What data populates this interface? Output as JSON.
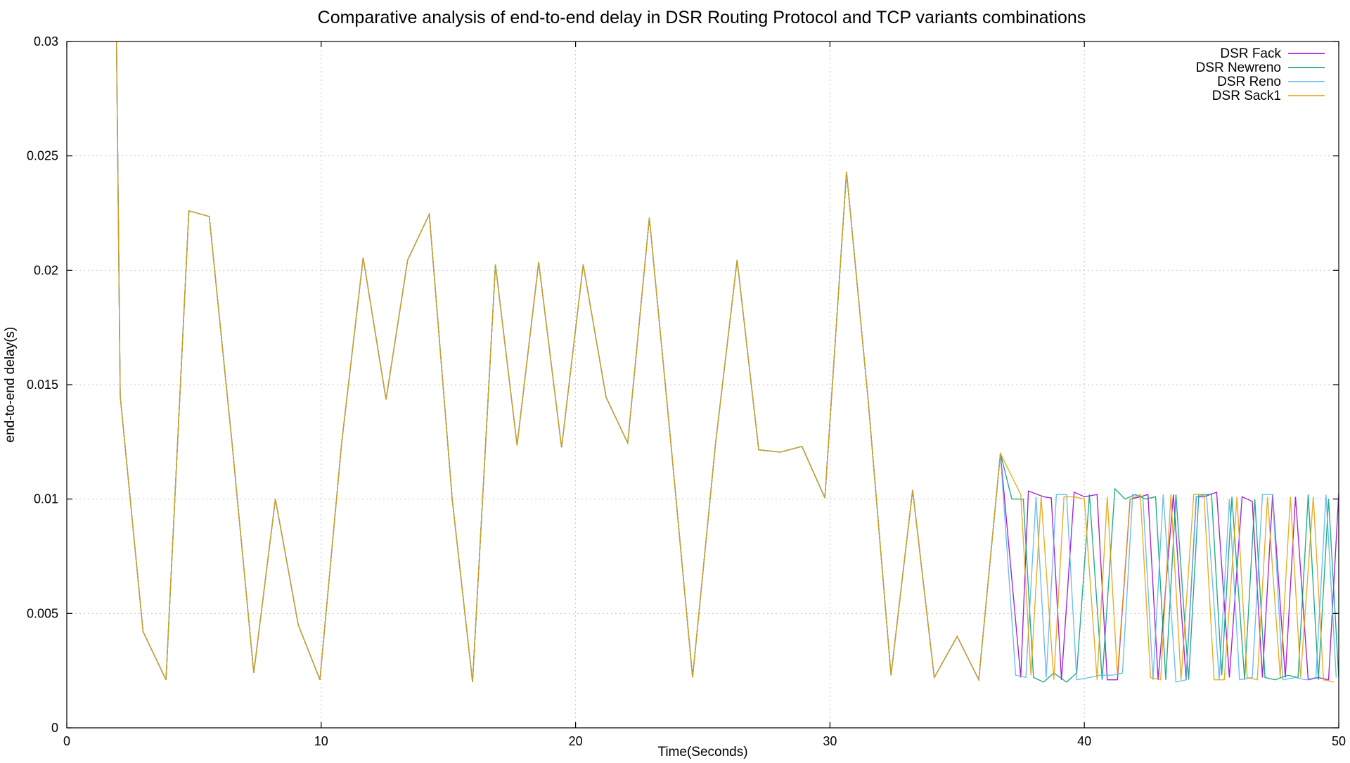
{
  "chart_data": {
    "type": "line",
    "title": "Comparative analysis of end-to-end delay in DSR Routing Protocol and TCP variants combinations",
    "xlabel": "Time(Seconds)",
    "ylabel": "end-to-end delay(s)",
    "xlim": [
      0,
      50
    ],
    "ylim": [
      0,
      0.03
    ],
    "xticks": [
      0,
      10,
      20,
      30,
      40,
      50
    ],
    "xtick_labels": [
      "0",
      "10",
      "20",
      "30",
      "40",
      "50"
    ],
    "yticks": [
      0,
      0.005,
      0.01,
      0.015,
      0.02,
      0.025,
      0.03
    ],
    "ytick_labels": [
      "0",
      "0.005",
      "0.01",
      "0.015",
      "0.02",
      "0.025",
      "0.03"
    ],
    "grid": true,
    "legend_position": "top-right",
    "common_prefix": [
      [
        1.95,
        0.0305
      ],
      [
        2.1,
        0.0145
      ],
      [
        3.0,
        0.0042
      ],
      [
        3.9,
        0.0021
      ],
      [
        4.8,
        0.0226
      ],
      [
        5.6,
        0.02235
      ],
      [
        6.5,
        0.0124
      ],
      [
        7.35,
        0.0024
      ],
      [
        8.2,
        0.01
      ],
      [
        9.1,
        0.0045
      ],
      [
        9.95,
        0.0021
      ],
      [
        10.8,
        0.0124
      ],
      [
        11.65,
        0.02055
      ],
      [
        12.55,
        0.01435
      ],
      [
        13.4,
        0.02045
      ],
      [
        14.25,
        0.02245
      ],
      [
        15.15,
        0.01
      ],
      [
        15.95,
        0.002
      ],
      [
        16.85,
        0.02025
      ],
      [
        17.7,
        0.01235
      ],
      [
        18.55,
        0.02035
      ],
      [
        19.45,
        0.01225
      ],
      [
        20.3,
        0.02025
      ],
      [
        21.2,
        0.01445
      ],
      [
        22.05,
        0.01245
      ],
      [
        22.9,
        0.0223
      ],
      [
        23.75,
        0.0124
      ],
      [
        24.6,
        0.0022
      ],
      [
        25.5,
        0.0124
      ],
      [
        26.35,
        0.02045
      ],
      [
        27.2,
        0.01215
      ],
      [
        28.05,
        0.01205
      ],
      [
        28.9,
        0.0123
      ],
      [
        29.8,
        0.01005
      ],
      [
        30.65,
        0.0243
      ],
      [
        31.5,
        0.01435
      ],
      [
        32.4,
        0.0023
      ],
      [
        33.25,
        0.0104
      ],
      [
        34.1,
        0.0022
      ],
      [
        35.0,
        0.004
      ],
      [
        35.85,
        0.0021
      ],
      [
        36.7,
        0.012
      ]
    ],
    "series": [
      {
        "name": "DSR Fack",
        "color": "#9400d3",
        "values_tail": [
          [
            37.5,
            0.0022
          ],
          [
            37.8,
            0.01035
          ],
          [
            38.4,
            0.0101
          ],
          [
            38.7,
            0.01005
          ],
          [
            39.1,
            0.0021
          ],
          [
            39.6,
            0.0103
          ],
          [
            40.0,
            0.0101
          ],
          [
            40.5,
            0.0102
          ],
          [
            40.9,
            0.0021
          ],
          [
            41.3,
            0.0021
          ],
          [
            41.8,
            0.01
          ],
          [
            42.2,
            0.0101
          ],
          [
            42.5,
            0.0102
          ],
          [
            42.9,
            0.0021
          ],
          [
            43.5,
            0.0102
          ],
          [
            44.0,
            0.0021
          ],
          [
            44.4,
            0.0101
          ],
          [
            44.7,
            0.0101
          ],
          [
            45.2,
            0.0103
          ],
          [
            45.7,
            0.0022
          ],
          [
            46.2,
            0.0101
          ],
          [
            46.6,
            0.0099
          ],
          [
            47.0,
            0.0022
          ],
          [
            47.4,
            0.0102
          ],
          [
            47.9,
            0.0022
          ],
          [
            48.3,
            0.0101
          ],
          [
            48.8,
            0.0021
          ],
          [
            49.2,
            0.0022
          ],
          [
            49.6,
            0.0021
          ],
          [
            50.0,
            0.01025
          ]
        ]
      },
      {
        "name": "DSR Newreno",
        "color": "#009e73",
        "values_tail": [
          [
            37.15,
            0.01
          ],
          [
            37.6,
            0.01
          ],
          [
            38.0,
            0.0022
          ],
          [
            38.4,
            0.002
          ],
          [
            38.8,
            0.0024
          ],
          [
            39.3,
            0.002
          ],
          [
            39.7,
            0.0024
          ],
          [
            40.2,
            0.0102
          ],
          [
            40.7,
            0.0021
          ],
          [
            41.2,
            0.01045
          ],
          [
            41.6,
            0.01
          ],
          [
            42.0,
            0.0102
          ],
          [
            42.4,
            0.01
          ],
          [
            42.8,
            0.0101
          ],
          [
            43.2,
            0.0021
          ],
          [
            43.6,
            0.0102
          ],
          [
            44.1,
            0.0021
          ],
          [
            44.5,
            0.0102
          ],
          [
            45.0,
            0.0102
          ],
          [
            45.4,
            0.0023
          ],
          [
            45.8,
            0.0101
          ],
          [
            46.3,
            0.0021
          ],
          [
            46.7,
            0.01
          ],
          [
            47.1,
            0.0022
          ],
          [
            47.5,
            0.0021
          ],
          [
            48.0,
            0.0023
          ],
          [
            48.4,
            0.0022
          ],
          [
            48.8,
            0.0102
          ],
          [
            49.2,
            0.0021
          ],
          [
            49.6,
            0.01
          ],
          [
            50.0,
            0.0022
          ]
        ]
      },
      {
        "name": "DSR Reno",
        "color": "#56b4e9",
        "values_tail": [
          [
            37.3,
            0.0023
          ],
          [
            37.7,
            0.0022
          ],
          [
            38.1,
            0.0101
          ],
          [
            38.5,
            0.0022
          ],
          [
            38.9,
            0.0102
          ],
          [
            39.3,
            0.0102
          ],
          [
            39.7,
            0.0021
          ],
          [
            40.2,
            0.0022
          ],
          [
            40.6,
            0.0023
          ],
          [
            41.1,
            0.0023
          ],
          [
            41.5,
            0.0024
          ],
          [
            41.9,
            0.0102
          ],
          [
            42.3,
            0.0101
          ],
          [
            42.7,
            0.0021
          ],
          [
            43.1,
            0.0102
          ],
          [
            43.6,
            0.002
          ],
          [
            44.0,
            0.0021
          ],
          [
            44.4,
            0.0101
          ],
          [
            44.8,
            0.0102
          ],
          [
            45.3,
            0.0021
          ],
          [
            45.7,
            0.01
          ],
          [
            46.1,
            0.0021
          ],
          [
            46.6,
            0.0022
          ],
          [
            47.0,
            0.0102
          ],
          [
            47.4,
            0.0102
          ],
          [
            47.8,
            0.0021
          ],
          [
            48.3,
            0.0022
          ],
          [
            48.7,
            0.0021
          ],
          [
            49.1,
            0.0022
          ],
          [
            49.5,
            0.0102
          ],
          [
            49.9,
            0.0022
          ]
        ]
      },
      {
        "name": "DSR Sack1",
        "color": "#e69f00",
        "values_tail": [
          [
            37.5,
            0.0102
          ],
          [
            37.9,
            0.0023
          ],
          [
            38.3,
            0.0101
          ],
          [
            38.8,
            0.0021
          ],
          [
            39.2,
            0.0101
          ],
          [
            39.6,
            0.0101
          ],
          [
            40.0,
            0.01
          ],
          [
            40.5,
            0.0021
          ],
          [
            40.9,
            0.0101
          ],
          [
            41.3,
            0.0023
          ],
          [
            41.8,
            0.01
          ],
          [
            42.2,
            0.0102
          ],
          [
            42.6,
            0.0022
          ],
          [
            43.0,
            0.0021
          ],
          [
            43.4,
            0.0102
          ],
          [
            43.8,
            0.0021
          ],
          [
            44.3,
            0.0102
          ],
          [
            44.7,
            0.0102
          ],
          [
            45.1,
            0.0021
          ],
          [
            45.5,
            0.0021
          ],
          [
            46.0,
            0.0101
          ],
          [
            46.4,
            0.0022
          ],
          [
            46.8,
            0.0021
          ],
          [
            47.2,
            0.0101
          ],
          [
            47.7,
            0.0022
          ],
          [
            48.1,
            0.0101
          ],
          [
            48.5,
            0.0022
          ],
          [
            49.0,
            0.0101
          ],
          [
            49.4,
            0.0021
          ],
          [
            49.8,
            0.002
          ]
        ]
      }
    ]
  }
}
